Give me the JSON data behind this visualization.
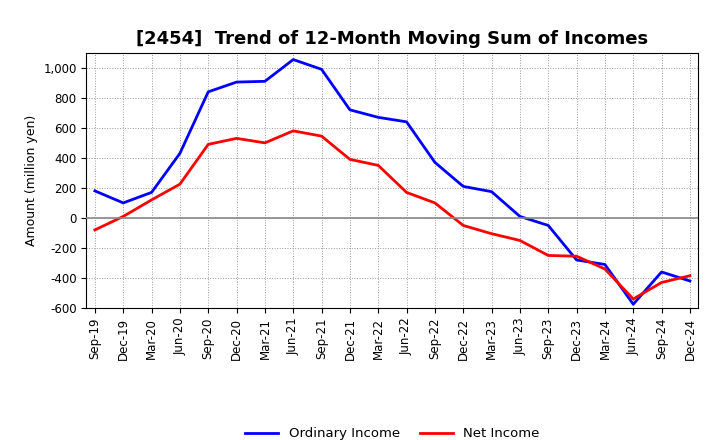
{
  "title": "[2454]  Trend of 12-Month Moving Sum of Incomes",
  "ylabel": "Amount (million yen)",
  "x_labels": [
    "Sep-19",
    "Dec-19",
    "Mar-20",
    "Jun-20",
    "Sep-20",
    "Dec-20",
    "Mar-21",
    "Jun-21",
    "Sep-21",
    "Dec-21",
    "Mar-22",
    "Jun-22",
    "Sep-22",
    "Dec-22",
    "Mar-23",
    "Jun-23",
    "Sep-23",
    "Dec-23",
    "Mar-24",
    "Jun-24",
    "Sep-24",
    "Dec-24"
  ],
  "ordinary_income": [
    180,
    100,
    170,
    430,
    840,
    905,
    910,
    1055,
    990,
    720,
    670,
    640,
    370,
    210,
    175,
    10,
    -50,
    -280,
    -310,
    -575,
    -360,
    -420
  ],
  "net_income": [
    -80,
    10,
    120,
    225,
    490,
    530,
    500,
    580,
    545,
    390,
    350,
    170,
    100,
    -50,
    -105,
    -150,
    -250,
    -255,
    -340,
    -540,
    -430,
    -385
  ],
  "ordinary_color": "#0000FF",
  "net_color": "#FF0000",
  "bg_color": "#FFFFFF",
  "plot_bg_color": "#FFFFFF",
  "ylim": [
    -600,
    1100
  ],
  "yticks": [
    -600,
    -400,
    -200,
    0,
    200,
    400,
    600,
    800,
    1000
  ],
  "grid_color": "#999999",
  "line_width": 2.0,
  "legend_labels": [
    "Ordinary Income",
    "Net Income"
  ],
  "zero_line_color": "#888888",
  "title_fontsize": 13,
  "axis_fontsize": 9,
  "tick_fontsize": 8.5
}
